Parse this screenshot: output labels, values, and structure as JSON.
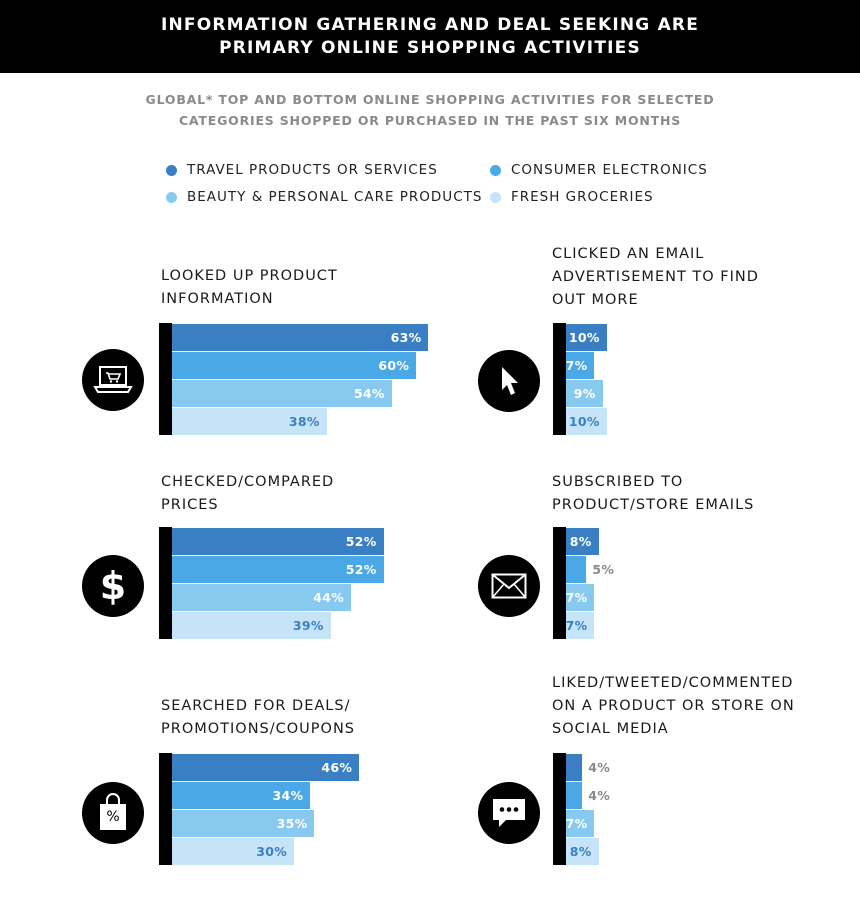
{
  "header": {
    "title_line1": "INFORMATION GATHERING AND DEAL SEEKING ARE",
    "title_line2": "PRIMARY ONLINE SHOPPING ACTIVITIES"
  },
  "subheader": {
    "line1": "GLOBAL* TOP AND BOTTOM ONLINE SHOPPING ACTIVITIES FOR SELECTED",
    "line2": "CATEGORIES SHOPPED OR PURCHASED IN THE PAST SIX MONTHS"
  },
  "colors": {
    "travel": "#3a7fc4",
    "electronics": "#4ba8e6",
    "beauty": "#88c9f0",
    "groceries": "#c6e4f7",
    "axis": "#000000"
  },
  "chart_data": [
    {
      "type": "bar",
      "orientation": "horizontal",
      "title_lines": [
        "LOOKED UP PRODUCT",
        "INFORMATION"
      ],
      "icon": "laptop-cart-icon",
      "series": [
        {
          "name": "TRAVEL PRODUCTS OR SERVICES",
          "value": 63,
          "label": "63%"
        },
        {
          "name": "CONSUMER ELECTRONICS",
          "value": 60,
          "label": "60%"
        },
        {
          "name": "BEAUTY & PERSONAL CARE PRODUCTS",
          "value": 54,
          "label": "54%"
        },
        {
          "name": "FRESH GROCERIES",
          "value": 38,
          "label": "38%"
        }
      ]
    },
    {
      "type": "bar",
      "orientation": "horizontal",
      "title_lines": [
        "CLICKED AN EMAIL",
        "ADVERTISEMENT TO FIND",
        "OUT MORE"
      ],
      "icon": "cursor-icon",
      "series": [
        {
          "name": "TRAVEL PRODUCTS OR SERVICES",
          "value": 10,
          "label": "10%"
        },
        {
          "name": "CONSUMER ELECTRONICS",
          "value": 7,
          "label": "7%"
        },
        {
          "name": "BEAUTY & PERSONAL CARE PRODUCTS",
          "value": 9,
          "label": "9%"
        },
        {
          "name": "FRESH GROCERIES",
          "value": 10,
          "label": "10%"
        }
      ]
    },
    {
      "type": "bar",
      "orientation": "horizontal",
      "title_lines": [
        "CHECKED/COMPARED",
        "PRICES"
      ],
      "icon": "dollar-icon",
      "icon_text": "$",
      "series": [
        {
          "name": "TRAVEL PRODUCTS OR SERVICES",
          "value": 52,
          "label": "52%"
        },
        {
          "name": "CONSUMER ELECTRONICS",
          "value": 52,
          "label": "52%"
        },
        {
          "name": "BEAUTY & PERSONAL CARE PRODUCTS",
          "value": 44,
          "label": "44%"
        },
        {
          "name": "FRESH GROCERIES",
          "value": 39,
          "label": "39%"
        }
      ]
    },
    {
      "type": "bar",
      "orientation": "horizontal",
      "title_lines": [
        "SUBSCRIBED TO",
        "PRODUCT/STORE EMAILS"
      ],
      "icon": "envelope-icon",
      "series": [
        {
          "name": "TRAVEL PRODUCTS OR SERVICES",
          "value": 8,
          "label": "8%"
        },
        {
          "name": "CONSUMER ELECTRONICS",
          "value": 5,
          "label": "5%"
        },
        {
          "name": "BEAUTY & PERSONAL CARE PRODUCTS",
          "value": 7,
          "label": "7%"
        },
        {
          "name": "FRESH GROCERIES",
          "value": 7,
          "label": "7%"
        }
      ]
    },
    {
      "type": "bar",
      "orientation": "horizontal",
      "title_lines": [
        "SEARCHED FOR DEALS/",
        "PROMOTIONS/COUPONS"
      ],
      "icon": "shopping-bag-percent-icon",
      "icon_text": "%",
      "series": [
        {
          "name": "TRAVEL PRODUCTS OR SERVICES",
          "value": 46,
          "label": "46%"
        },
        {
          "name": "CONSUMER ELECTRONICS",
          "value": 34,
          "label": "34%"
        },
        {
          "name": "BEAUTY & PERSONAL CARE PRODUCTS",
          "value": 35,
          "label": "35%"
        },
        {
          "name": "FRESH GROCERIES",
          "value": 30,
          "label": "30%"
        }
      ]
    },
    {
      "type": "bar",
      "orientation": "horizontal",
      "title_lines": [
        "LIKED/TWEETED/COMMENTED",
        "ON A PRODUCT OR STORE ON",
        "SOCIAL MEDIA"
      ],
      "icon": "speech-bubble-icon",
      "series": [
        {
          "name": "TRAVEL PRODUCTS OR SERVICES",
          "value": 4,
          "label": "4%"
        },
        {
          "name": "CONSUMER ELECTRONICS",
          "value": 4,
          "label": "4%"
        },
        {
          "name": "BEAUTY & PERSONAL CARE PRODUCTS",
          "value": 7,
          "label": "7%"
        },
        {
          "name": "FRESH GROCERIES",
          "value": 8,
          "label": "8%"
        }
      ]
    }
  ],
  "legend": [
    {
      "label": "TRAVEL PRODUCTS OR SERVICES",
      "color": "#3a7fc4"
    },
    {
      "label": "CONSUMER ELECTRONICS",
      "color": "#4ba8e6"
    },
    {
      "label": "BEAUTY & PERSONAL CARE PRODUCTS",
      "color": "#88c9f0"
    },
    {
      "label": "FRESH GROCERIES",
      "color": "#c6e4f7"
    }
  ]
}
